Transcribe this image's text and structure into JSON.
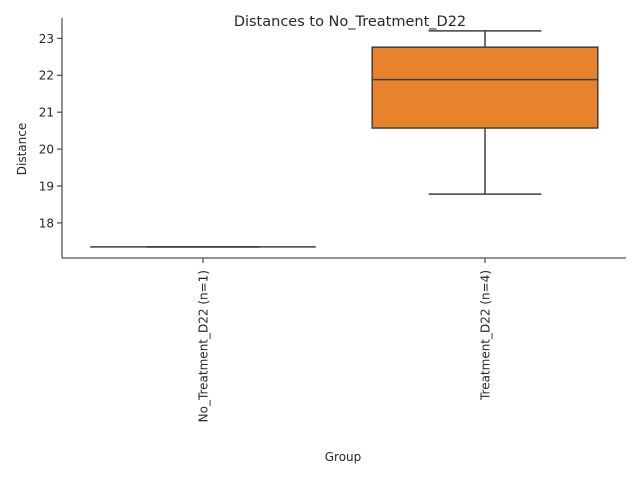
{
  "chart_data": {
    "type": "box",
    "title": "Distances to No_Treatment_D22",
    "xlabel": "Group",
    "ylabel": "Distance",
    "ylim": [
      17.05,
      23.55
    ],
    "yticks": [
      18,
      19,
      20,
      21,
      22,
      23
    ],
    "grid": false,
    "categories": [
      "No_Treatment_D22 (n=1)",
      "Treatment_D22 (n=4)"
    ],
    "boxes": [
      {
        "name": "No_Treatment_D22 (n=1)",
        "min": 17.35,
        "q1": 17.35,
        "median": 17.35,
        "q3": 17.35,
        "max": 17.35,
        "color": "#1f77b4"
      },
      {
        "name": "Treatment_D22 (n=4)",
        "min": 18.78,
        "q1": 20.57,
        "median": 21.88,
        "q3": 22.76,
        "max": 23.2,
        "color": "#e8832b"
      }
    ]
  }
}
